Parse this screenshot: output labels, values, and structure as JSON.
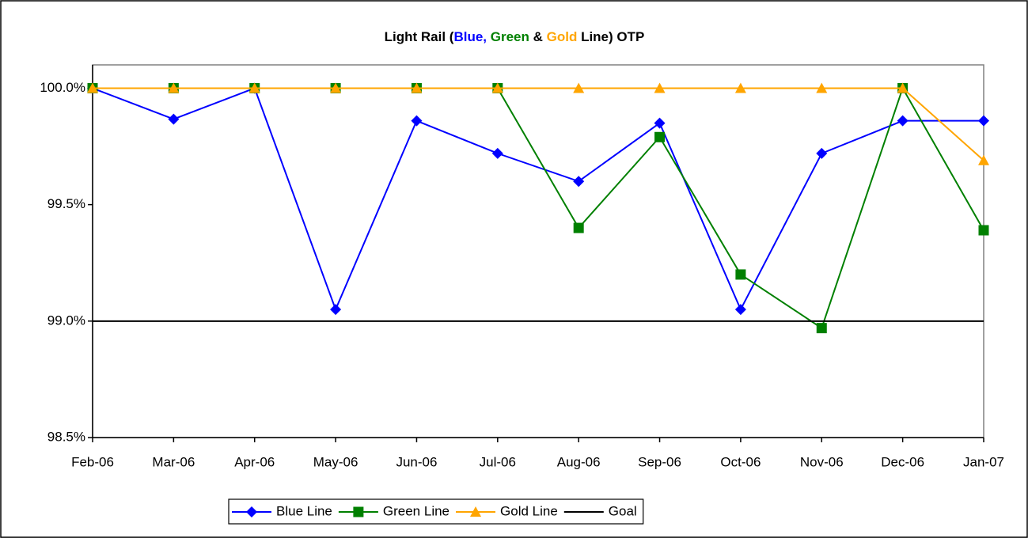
{
  "chart_data": {
    "type": "line",
    "title_parts": [
      {
        "text": "Light Rail (",
        "color": "#000000"
      },
      {
        "text": "Blue,",
        "color": "#0000ff"
      },
      {
        "text": " Green",
        "color": "#008000"
      },
      {
        "text": " &",
        "color": "#000000"
      },
      {
        "text": " Gold",
        "color": "#ffa500"
      },
      {
        "text": " Line) OTP",
        "color": "#000000"
      }
    ],
    "categories": [
      "Feb-06",
      "Mar-06",
      "Apr-06",
      "May-06",
      "Jun-06",
      "Jul-06",
      "Aug-06",
      "Sep-06",
      "Oct-06",
      "Nov-06",
      "Dec-06",
      "Jan-07"
    ],
    "series": [
      {
        "name": "Blue Line",
        "color": "#0000ff",
        "marker": "diamond",
        "values": [
          100,
          99.867,
          100,
          99.05,
          99.86,
          99.72,
          99.6,
          99.85,
          99.05,
          99.72,
          99.86,
          99.86
        ]
      },
      {
        "name": "Green Line",
        "color": "#008000",
        "marker": "square",
        "values": [
          100,
          100,
          100,
          100,
          100,
          100,
          99.4,
          99.79,
          99.2,
          98.97,
          100,
          99.39
        ]
      },
      {
        "name": "Gold Line",
        "color": "#ffa500",
        "marker": "triangle",
        "values": [
          100,
          100,
          100,
          100,
          100,
          100,
          100,
          100,
          100,
          100,
          100,
          99.69
        ]
      },
      {
        "name": "Goal",
        "color": "#000000",
        "marker": "none",
        "values": [
          99,
          99,
          99,
          99,
          99,
          99,
          99,
          99,
          99,
          99,
          99,
          99
        ]
      }
    ],
    "ylim": [
      98.5,
      100.1
    ],
    "yticks": [
      {
        "value": 98.5,
        "label": "98.5%"
      },
      {
        "value": 99.0,
        "label": "99.0%"
      },
      {
        "value": 99.5,
        "label": "99.5%"
      },
      {
        "value": 100.0,
        "label": "100.0%"
      }
    ],
    "legend": "bottom"
  }
}
